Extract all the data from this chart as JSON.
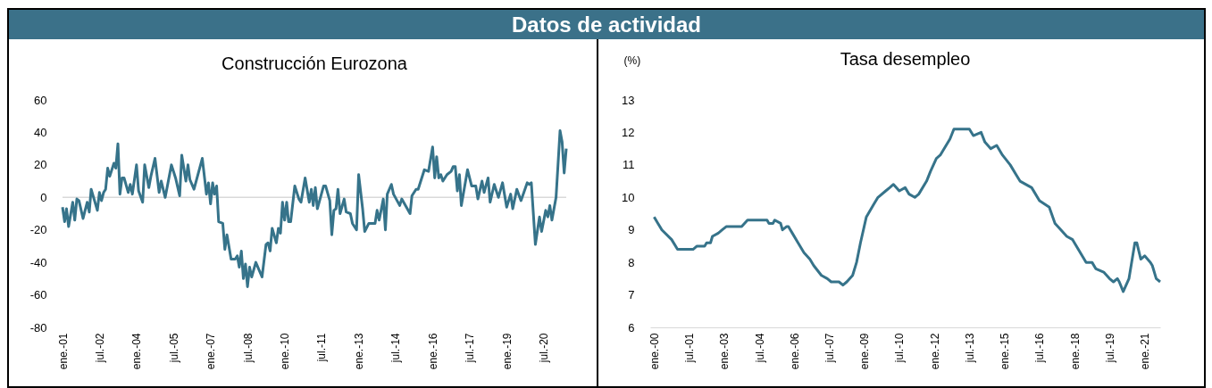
{
  "chart_data": [
    {
      "type": "other",
      "title": "Datos de actividad"
    },
    {
      "type": "line",
      "title": "Construcción Eurozona",
      "color": "#36738a",
      "x": [
        "2001-01",
        "2001-02",
        "2001-03",
        "2001-04",
        "2001-06",
        "2001-07",
        "2001-08",
        "2001-09",
        "2001-11",
        "2002-01",
        "2002-02",
        "2002-03",
        "2002-06",
        "2002-07",
        "2002-08",
        "2002-09",
        "2002-10",
        "2002-11",
        "2002-12",
        "2003-02",
        "2003-03",
        "2003-04",
        "2003-05",
        "2003-06",
        "2003-07",
        "2003-09",
        "2003-10",
        "2003-11",
        "2004-01",
        "2004-02",
        "2004-04",
        "2004-05",
        "2004-07",
        "2004-08",
        "2004-10",
        "2004-12",
        "2005-01",
        "2005-03",
        "2005-06",
        "2005-08",
        "2005-10",
        "2005-11",
        "2006-01",
        "2006-02",
        "2006-03",
        "2006-05",
        "2006-09",
        "2006-11",
        "2006-12",
        "2007-01",
        "2007-02",
        "2007-03",
        "2007-04",
        "2007-05",
        "2007-07",
        "2007-08",
        "2007-09",
        "2007-11",
        "2008-01",
        "2008-02",
        "2008-03",
        "2008-04",
        "2008-05",
        "2008-06",
        "2008-07",
        "2008-08",
        "2008-09",
        "2008-11",
        "2009-02",
        "2009-04",
        "2009-05",
        "2009-06",
        "2009-07",
        "2009-09",
        "2009-10",
        "2009-11",
        "2009-12",
        "2010-01",
        "2010-02",
        "2010-03",
        "2010-04",
        "2010-06",
        "2010-08",
        "2010-09",
        "2010-11",
        "2011-01",
        "2011-02",
        "2011-03",
        "2011-04",
        "2011-05",
        "2011-08",
        "2011-09",
        "2011-11",
        "2011-12",
        "2012-01",
        "2012-02",
        "2012-03",
        "2012-04",
        "2012-06",
        "2012-07",
        "2012-09",
        "2012-10",
        "2012-12",
        "2013-01",
        "2013-03",
        "2013-04",
        "2013-06",
        "2013-09",
        "2013-10",
        "2013-11",
        "2014-01",
        "2014-02",
        "2014-03",
        "2014-05",
        "2014-06",
        "2014-09",
        "2014-10",
        "2015-02",
        "2015-03",
        "2015-05",
        "2015-06",
        "2015-09",
        "2015-11",
        "2016-01",
        "2016-02",
        "2016-03",
        "2016-04",
        "2016-05",
        "2016-06",
        "2016-08",
        "2016-10",
        "2016-11",
        "2016-12",
        "2017-01",
        "2017-02",
        "2017-03",
        "2017-06",
        "2017-08",
        "2017-10",
        "2017-11",
        "2018-01",
        "2018-02",
        "2018-04",
        "2018-05",
        "2018-07",
        "2018-09",
        "2018-11",
        "2019-01",
        "2019-03",
        "2019-04",
        "2019-06",
        "2019-08",
        "2019-11",
        "2019-12",
        "2020-01",
        "2020-03",
        "2020-05",
        "2020-06",
        "2020-08",
        "2020-09",
        "2020-10",
        "2020-11",
        "2021-01",
        "2021-03",
        "2021-04",
        "2021-05",
        "2021-06"
      ],
      "values": [
        -6,
        -15,
        -7,
        -18,
        -3,
        -14,
        -1,
        -2,
        -13,
        -3,
        -9,
        5,
        -8,
        3,
        -2,
        3,
        5,
        18,
        13,
        21,
        18,
        33,
        2,
        12,
        12,
        3,
        8,
        2,
        20,
        4,
        -3,
        20,
        6,
        13,
        24,
        3,
        10,
        0,
        20,
        12,
        1,
        26,
        10,
        20,
        11,
        5,
        24,
        2,
        9,
        -4,
        9,
        2,
        7,
        -15,
        -16,
        -32,
        -23,
        -38,
        -38,
        -36,
        -43,
        -33,
        -50,
        -41,
        -55,
        -43,
        -49,
        -40,
        -49,
        -29,
        -28,
        -33,
        -19,
        -28,
        -19,
        -22,
        -3,
        -14,
        -3,
        -15,
        -15,
        7,
        -1,
        -3,
        12,
        -3,
        5,
        -5,
        6,
        -7,
        7,
        7,
        -2,
        -23,
        -8,
        -7,
        5,
        -10,
        -1,
        -9,
        -10,
        -16,
        -20,
        14,
        -7,
        -21,
        -16,
        -16,
        -8,
        -14,
        -1,
        -20,
        2,
        8,
        2,
        -5,
        -1,
        -10,
        1,
        5,
        5,
        17,
        16,
        31,
        12,
        25,
        12,
        14,
        10,
        14,
        16,
        19,
        19,
        4,
        14,
        -5,
        17,
        7,
        7,
        -1,
        10,
        3,
        12,
        -3,
        8,
        0,
        9,
        -6,
        2,
        -7,
        5,
        -2,
        9,
        8,
        9,
        -29,
        -12,
        -21,
        -8,
        -12,
        -5,
        -14,
        0,
        41,
        34,
        15,
        30
      ],
      "xlim": [
        "2001-01",
        "2021-06"
      ],
      "xticks": [
        {
          "value": "2001-01",
          "label": "ene.-01"
        },
        {
          "value": "2002-07",
          "label": "jul.-02"
        },
        {
          "value": "2004-01",
          "label": "ene.-04"
        },
        {
          "value": "2005-07",
          "label": "jul.-05"
        },
        {
          "value": "2007-01",
          "label": "ene.-07"
        },
        {
          "value": "2008-07",
          "label": "jul.-08"
        },
        {
          "value": "2010-01",
          "label": "ene.-10"
        },
        {
          "value": "2011-07",
          "label": "jul.-11"
        },
        {
          "value": "2013-01",
          "label": "ene.-13"
        },
        {
          "value": "2014-07",
          "label": "jul.-14"
        },
        {
          "value": "2016-01",
          "label": "ene.-16"
        },
        {
          "value": "2017-07",
          "label": "jul.-17"
        },
        {
          "value": "2019-01",
          "label": "ene.-19"
        },
        {
          "value": "2020-07",
          "label": "jul.-20"
        }
      ],
      "ylim": [
        -80,
        60
      ],
      "yticks": [
        -80,
        -60,
        -40,
        -20,
        0,
        20,
        40,
        60
      ],
      "ref_lines": [
        {
          "axis": "y",
          "value": 0,
          "color": "#d9d9d9"
        }
      ]
    },
    {
      "type": "line",
      "title": "Tasa desempleo",
      "ylabel": "(%)",
      "color": "#36738a",
      "x": [
        "2000-01",
        "2000-03",
        "2000-05",
        "2000-10",
        "2001-01",
        "2001-09",
        "2001-11",
        "2002-03",
        "2002-04",
        "2002-06",
        "2002-07",
        "2002-10",
        "2002-12",
        "2003-02",
        "2003-10",
        "2004-01",
        "2004-11",
        "2004-12",
        "2005-02",
        "2005-03",
        "2005-06",
        "2005-07",
        "2005-09",
        "2005-10",
        "2005-12",
        "2006-03",
        "2006-06",
        "2006-09",
        "2006-11",
        "2007-03",
        "2007-06",
        "2007-08",
        "2007-12",
        "2008-02",
        "2008-04",
        "2008-07",
        "2008-09",
        "2008-11",
        "2009-02",
        "2009-06",
        "2009-08",
        "2009-12",
        "2010-02",
        "2010-04",
        "2010-07",
        "2010-10",
        "2010-12",
        "2011-03",
        "2011-05",
        "2011-09",
        "2011-11",
        "2012-02",
        "2012-04",
        "2012-09",
        "2012-11",
        "2013-07",
        "2013-09",
        "2014-01",
        "2014-03",
        "2014-06",
        "2014-09",
        "2014-12",
        "2015-04",
        "2015-07",
        "2015-09",
        "2016-03",
        "2016-07",
        "2016-12",
        "2017-03",
        "2017-09",
        "2017-12",
        "2018-07",
        "2018-10",
        "2018-12",
        "2019-04",
        "2019-07",
        "2019-09",
        "2019-11",
        "2019-12",
        "2020-02",
        "2020-05",
        "2020-08",
        "2020-09",
        "2020-11",
        "2021-01",
        "2021-04",
        "2021-05",
        "2021-07",
        "2021-09"
      ],
      "values": [
        9.4,
        9.2,
        9.0,
        8.7,
        8.4,
        8.4,
        8.5,
        8.5,
        8.6,
        8.6,
        8.8,
        8.9,
        9.0,
        9.1,
        9.1,
        9.3,
        9.3,
        9.2,
        9.2,
        9.3,
        9.2,
        9.0,
        9.1,
        9.1,
        8.9,
        8.6,
        8.3,
        8.1,
        7.9,
        7.6,
        7.5,
        7.4,
        7.4,
        7.3,
        7.4,
        7.6,
        8.0,
        8.6,
        9.4,
        9.8,
        10.0,
        10.2,
        10.3,
        10.4,
        10.2,
        10.3,
        10.1,
        10.0,
        10.1,
        10.5,
        10.8,
        11.2,
        11.3,
        11.8,
        12.1,
        12.1,
        11.9,
        12.0,
        11.7,
        11.5,
        11.6,
        11.3,
        11.0,
        10.7,
        10.5,
        10.3,
        9.9,
        9.7,
        9.2,
        8.8,
        8.7,
        8.0,
        8.0,
        7.8,
        7.7,
        7.5,
        7.4,
        7.5,
        7.4,
        7.1,
        7.5,
        8.6,
        8.6,
        8.1,
        8.2,
        8.0,
        7.9,
        7.5,
        7.4
      ],
      "xlim": [
        "1999-11",
        "2021-09"
      ],
      "xticks": [
        {
          "value": "2000-01",
          "label": "ene.-00"
        },
        {
          "value": "2001-07",
          "label": "jul.-01"
        },
        {
          "value": "2003-01",
          "label": "ene.-03"
        },
        {
          "value": "2004-07",
          "label": "jul.-04"
        },
        {
          "value": "2006-01",
          "label": "ene.-06"
        },
        {
          "value": "2007-07",
          "label": "jul.-07"
        },
        {
          "value": "2009-01",
          "label": "ene.-09"
        },
        {
          "value": "2010-07",
          "label": "jul.-10"
        },
        {
          "value": "2012-01",
          "label": "ene.-12"
        },
        {
          "value": "2013-07",
          "label": "jul.-13"
        },
        {
          "value": "2015-01",
          "label": "ene.-15"
        },
        {
          "value": "2016-07",
          "label": "jul.-16"
        },
        {
          "value": "2018-01",
          "label": "ene.-18"
        },
        {
          "value": "2019-07",
          "label": "jul.-19"
        },
        {
          "value": "2021-01",
          "label": "ene.-21"
        }
      ],
      "ylim": [
        6,
        13
      ],
      "yticks": [
        6,
        7,
        8,
        9,
        10,
        11,
        12,
        13
      ]
    }
  ]
}
